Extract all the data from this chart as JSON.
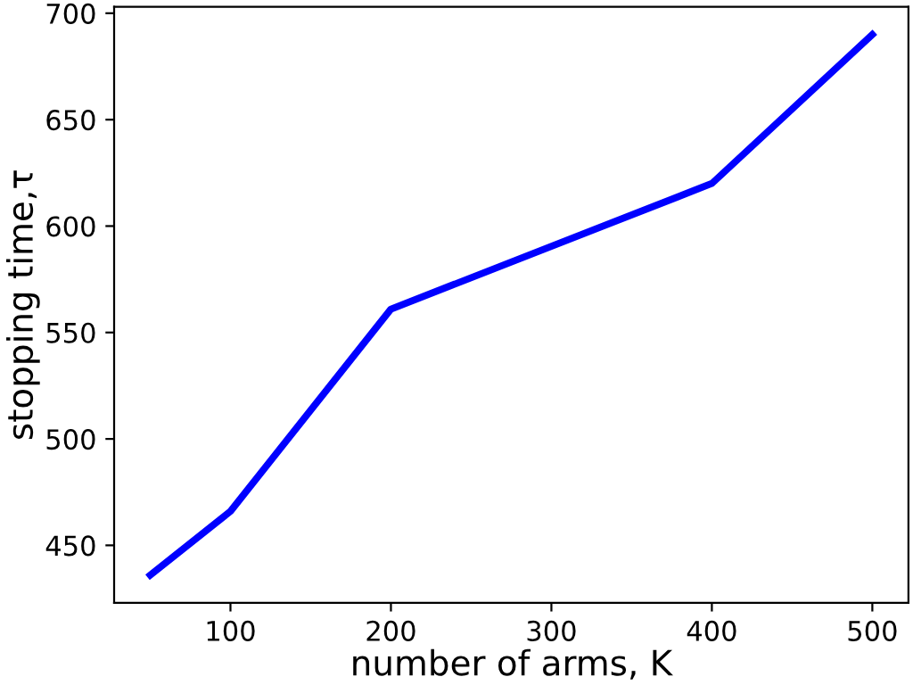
{
  "chart_data": {
    "type": "line",
    "xlabel": "number of arms, K",
    "ylabel": "stopping time,τ",
    "x": [
      50,
      100,
      200,
      400,
      500
    ],
    "series": [
      {
        "color": "#0000ff",
        "values": [
          436,
          466,
          561,
          620,
          690
        ]
      }
    ],
    "xlim": [
      27.5,
      522.5
    ],
    "ylim": [
      423,
      703
    ],
    "xticks": [
      100,
      200,
      300,
      400,
      500
    ],
    "yticks": [
      450,
      500,
      550,
      600,
      650,
      700
    ],
    "grid": false,
    "marker": "none",
    "line_style": "solid"
  }
}
